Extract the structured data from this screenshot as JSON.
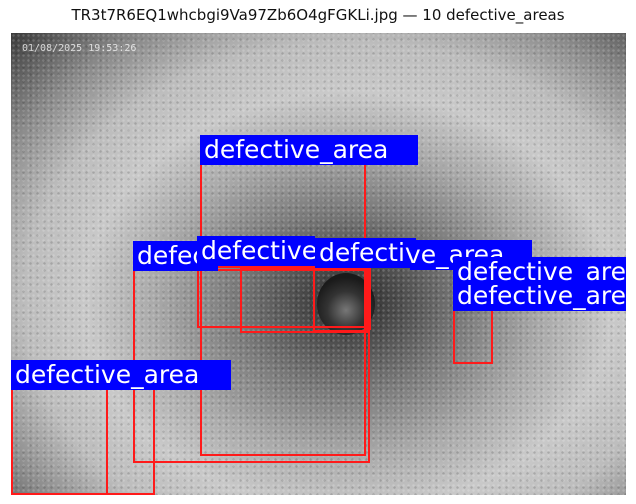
{
  "figure_title": "TR3t7R6EQ1whcbgi9Va97Zb6O4gFGKLi.jpg — 10 defective_areas",
  "timestamp": "01/08/2025 19:53:26",
  "colors": {
    "box": "#ff1a1a",
    "label_bg": "#0000ff",
    "label_text": "#ffffff"
  },
  "detections": [
    {
      "label": "defective_area"
    },
    {
      "label": "defective_area"
    },
    {
      "label": "defective_area"
    },
    {
      "label": "defective_area"
    },
    {
      "label": "defective_area"
    },
    {
      "label": "defective_area"
    },
    {
      "label": "defective_area"
    },
    {
      "label": "defective_area"
    },
    {
      "label": "defective_area"
    },
    {
      "label": "defective_area"
    }
  ]
}
